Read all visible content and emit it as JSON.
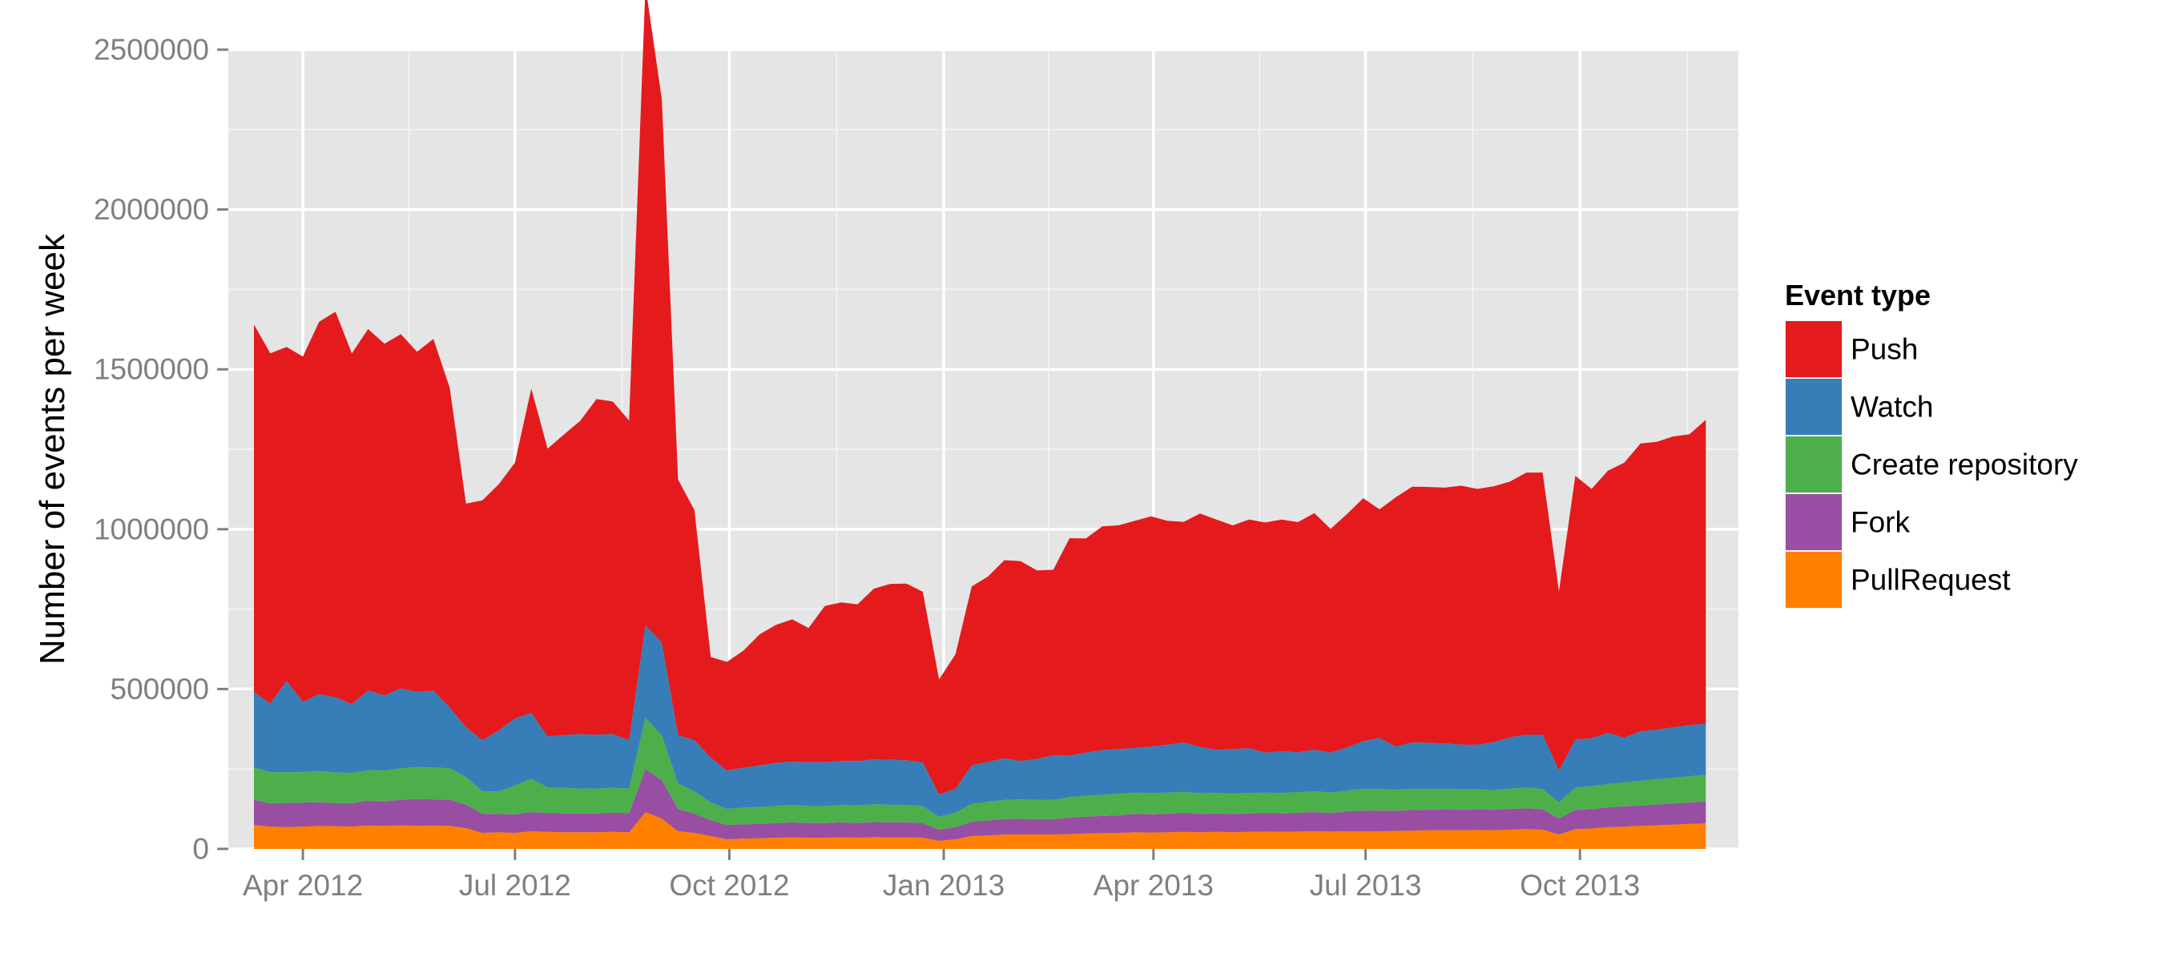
{
  "chart_data": {
    "type": "area",
    "stacked": true,
    "title": "",
    "xlabel": "",
    "ylabel": "Number of events per week",
    "ylim": [
      0,
      2500000
    ],
    "xlim": [
      "2012-02-29",
      "2013-12-08"
    ],
    "x_ticks": [
      {
        "date": "2012-04-01",
        "label": "Apr 2012"
      },
      {
        "date": "2012-07-01",
        "label": "Jul 2012"
      },
      {
        "date": "2012-10-01",
        "label": "Oct 2012"
      },
      {
        "date": "2013-01-01",
        "label": "Jan 2013"
      },
      {
        "date": "2013-04-01",
        "label": "Apr 2013"
      },
      {
        "date": "2013-07-01",
        "label": "Jul 2013"
      },
      {
        "date": "2013-10-01",
        "label": "Oct 2013"
      }
    ],
    "y_ticks": [
      {
        "value": 0,
        "label": "0"
      },
      {
        "value": 500000,
        "label": "500000"
      },
      {
        "value": 1000000,
        "label": "1000000"
      },
      {
        "value": 1500000,
        "label": "1500000"
      },
      {
        "value": 2000000,
        "label": "2000000"
      },
      {
        "value": 2500000,
        "label": "2500000"
      }
    ],
    "grid": true,
    "legend": {
      "title": "Event type",
      "position": "right"
    },
    "x_dates": [
      "2012-03-11",
      "2012-03-18",
      "2012-03-25",
      "2012-04-01",
      "2012-04-08",
      "2012-04-15",
      "2012-04-22",
      "2012-04-29",
      "2012-05-06",
      "2012-05-13",
      "2012-05-20",
      "2012-05-27",
      "2012-06-03",
      "2012-06-10",
      "2012-06-17",
      "2012-06-24",
      "2012-07-01",
      "2012-07-08",
      "2012-07-15",
      "2012-07-22",
      "2012-07-29",
      "2012-08-05",
      "2012-08-12",
      "2012-08-19",
      "2012-08-26",
      "2012-09-02",
      "2012-09-09",
      "2012-09-16",
      "2012-09-23",
      "2012-09-30",
      "2012-10-07",
      "2012-10-14",
      "2012-10-21",
      "2012-10-28",
      "2012-11-04",
      "2012-11-11",
      "2012-11-18",
      "2012-11-25",
      "2012-12-02",
      "2012-12-09",
      "2012-12-16",
      "2012-12-23",
      "2012-12-30",
      "2013-01-06",
      "2013-01-13",
      "2013-01-20",
      "2013-01-27",
      "2013-02-03",
      "2013-02-10",
      "2013-02-17",
      "2013-02-24",
      "2013-03-03",
      "2013-03-10",
      "2013-03-17",
      "2013-03-24",
      "2013-03-31",
      "2013-04-07",
      "2013-04-14",
      "2013-04-21",
      "2013-04-28",
      "2013-05-05",
      "2013-05-12",
      "2013-05-19",
      "2013-05-26",
      "2013-06-02",
      "2013-06-09",
      "2013-06-16",
      "2013-06-23",
      "2013-06-30",
      "2013-07-07",
      "2013-07-14",
      "2013-07-21",
      "2013-07-28",
      "2013-08-04",
      "2013-08-11",
      "2013-08-18",
      "2013-08-25",
      "2013-09-01",
      "2013-09-08",
      "2013-09-15",
      "2013-09-22",
      "2013-09-29",
      "2013-10-06",
      "2013-10-13",
      "2013-10-20",
      "2013-10-27",
      "2013-11-03",
      "2013-11-10",
      "2013-11-17",
      "2013-11-24"
    ],
    "series": [
      {
        "name": "PullRequest",
        "color": "#FF7F00",
        "values": [
          75000,
          70000,
          68000,
          70000,
          72000,
          71000,
          70000,
          73000,
          72000,
          74000,
          72000,
          73000,
          72000,
          65000,
          50000,
          52000,
          50000,
          55000,
          53000,
          52000,
          52000,
          52000,
          53000,
          52000,
          115000,
          95000,
          55000,
          50000,
          40000,
          30000,
          32000,
          33000,
          35000,
          36000,
          35000,
          35000,
          36000,
          35000,
          37000,
          36000,
          36000,
          35000,
          25000,
          30000,
          40000,
          42000,
          45000,
          45000,
          45000,
          45000,
          46000,
          48000,
          49000,
          50000,
          52000,
          51000,
          52000,
          53000,
          52000,
          53000,
          52000,
          53000,
          54000,
          53000,
          54000,
          55000,
          54000,
          55000,
          55000,
          55000,
          56000,
          57000,
          58000,
          58000,
          58000,
          59000,
          58000,
          60000,
          62000,
          60000,
          45000,
          62000,
          64000,
          68000,
          70000,
          72000,
          74000,
          76000,
          78000,
          80000
        ]
      },
      {
        "name": "Fork",
        "color": "#984EA3",
        "values": [
          78000,
          72000,
          75000,
          75000,
          74000,
          72000,
          73000,
          78000,
          76000,
          80000,
          84000,
          82000,
          82000,
          73000,
          60000,
          57000,
          58000,
          60000,
          59000,
          59000,
          59000,
          59000,
          60000,
          60000,
          135000,
          120000,
          70000,
          60000,
          50000,
          45000,
          45000,
          45000,
          46000,
          47000,
          46000,
          46000,
          47000,
          46000,
          47000,
          47000,
          47000,
          46000,
          35000,
          38000,
          45000,
          47000,
          48000,
          49000,
          48000,
          48000,
          52000,
          53000,
          54000,
          55000,
          58000,
          57000,
          58000,
          60000,
          57000,
          58000,
          57000,
          58000,
          59000,
          58000,
          59000,
          60000,
          58000,
          62000,
          65000,
          65000,
          63000,
          65000,
          64000,
          65000,
          64000,
          64000,
          64000,
          65000,
          65000,
          64000,
          50000,
          60000,
          60000,
          62000,
          63000,
          64000,
          65000,
          66000,
          67000,
          68000
        ]
      },
      {
        "name": "Create repository",
        "color": "#4DAF4A",
        "values": [
          102000,
          98000,
          97000,
          95000,
          98000,
          96000,
          95000,
          95000,
          97000,
          98000,
          100000,
          100000,
          98000,
          87000,
          70000,
          71000,
          90000,
          105000,
          80000,
          80000,
          78000,
          78000,
          78000,
          78000,
          160000,
          140000,
          80000,
          70000,
          55000,
          50000,
          52000,
          53000,
          53000,
          54000,
          53000,
          53000,
          54000,
          55000,
          56000,
          55000,
          54000,
          52000,
          40000,
          45000,
          56000,
          58000,
          60000,
          61000,
          60000,
          60000,
          64000,
          65000,
          66000,
          67000,
          66000,
          67000,
          66000,
          65000,
          65000,
          64000,
          63000,
          64000,
          63000,
          64000,
          64000,
          65000,
          64000,
          65000,
          67000,
          67000,
          66000,
          66000,
          65000,
          65000,
          64000,
          63000,
          62000,
          64000,
          65000,
          63000,
          50000,
          70000,
          72000,
          73000,
          75000,
          77000,
          79000,
          80000,
          82000,
          84000
        ]
      },
      {
        "name": "Watch",
        "color": "#377EB8",
        "values": [
          235000,
          215000,
          285000,
          220000,
          240000,
          235000,
          215000,
          250000,
          235000,
          250000,
          235000,
          240000,
          190000,
          155000,
          160000,
          190000,
          210000,
          205000,
          160000,
          165000,
          170000,
          168000,
          168000,
          150000,
          290000,
          290000,
          150000,
          160000,
          140000,
          120000,
          125000,
          130000,
          135000,
          136000,
          137000,
          137000,
          138000,
          139000,
          140000,
          141000,
          140000,
          137000,
          70000,
          75000,
          120000,
          125000,
          130000,
          120000,
          128000,
          140000,
          130000,
          135000,
          140000,
          140000,
          140000,
          145000,
          150000,
          155000,
          145000,
          135000,
          140000,
          140000,
          125000,
          130000,
          125000,
          130000,
          125000,
          135000,
          150000,
          160000,
          135000,
          145000,
          145000,
          142000,
          140000,
          140000,
          150000,
          160000,
          165000,
          170000,
          100000,
          150000,
          150000,
          160000,
          140000,
          155000,
          155000,
          158000,
          160000,
          160000
        ]
      },
      {
        "name": "Push",
        "color": "#E41A1C",
        "values": [
          1150000,
          1095000,
          1045000,
          1080000,
          1165000,
          1206000,
          1097000,
          1130000,
          1100000,
          1108000,
          1064000,
          1100000,
          1000000,
          700000,
          750000,
          770000,
          800000,
          1015000,
          900000,
          940000,
          980000,
          1050000,
          1040000,
          1000000,
          2000000,
          1700000,
          800000,
          720000,
          315000,
          340000,
          366000,
          410000,
          432000,
          445000,
          420000,
          489000,
          496000,
          490000,
          534000,
          550000,
          553000,
          534000,
          360000,
          420000,
          560000,
          580000,
          620000,
          625000,
          590000,
          580000,
          680000,
          670000,
          700000,
          700000,
          710000,
          720000,
          700000,
          690000,
          730000,
          720000,
          700000,
          715000,
          720000,
          725000,
          720000,
          740000,
          700000,
          730000,
          760000,
          715000,
          780000,
          800000,
          800000,
          800000,
          810000,
          800000,
          800000,
          800000,
          820000,
          820000,
          560000,
          825000,
          780000,
          820000,
          860000,
          900000,
          900000,
          910000,
          910000,
          950000
        ]
      }
    ]
  }
}
